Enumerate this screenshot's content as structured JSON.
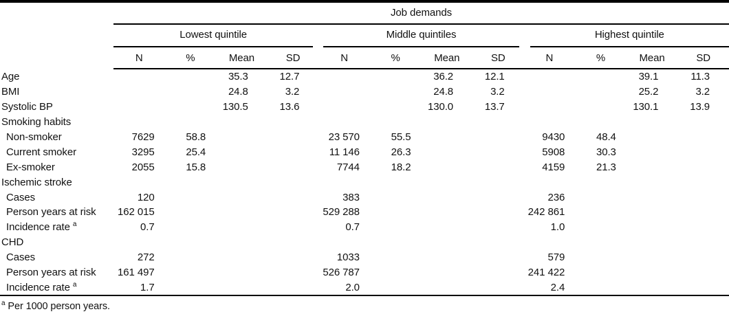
{
  "table": {
    "title": "Job demands",
    "groups": [
      {
        "label": "Lowest quintile"
      },
      {
        "label": "Middle quintiles"
      },
      {
        "label": "Highest quintile"
      }
    ],
    "subheaders": [
      "N",
      "%",
      "Mean",
      "SD"
    ],
    "rows": [
      {
        "label": "Age",
        "indent": false,
        "sup": "",
        "cells": [
          "",
          "",
          "35.3",
          "12.7",
          "",
          "",
          "36.2",
          "12.1",
          "",
          "",
          "39.1",
          "11.3"
        ]
      },
      {
        "label": "BMI",
        "indent": false,
        "sup": "",
        "cells": [
          "",
          "",
          "24.8",
          "3.2",
          "",
          "",
          "24.8",
          "3.2",
          "",
          "",
          "25.2",
          "3.2"
        ]
      },
      {
        "label": "Systolic BP",
        "indent": false,
        "sup": "",
        "cells": [
          "",
          "",
          "130.5",
          "13.6",
          "",
          "",
          "130.0",
          "13.7",
          "",
          "",
          "130.1",
          "13.9"
        ]
      },
      {
        "label": "Smoking habits",
        "indent": false,
        "sup": "",
        "cells": [
          "",
          "",
          "",
          "",
          "",
          "",
          "",
          "",
          "",
          "",
          "",
          ""
        ]
      },
      {
        "label": "Non-smoker",
        "indent": true,
        "sup": "",
        "cells": [
          "7629",
          "58.8",
          "",
          "",
          "23 570",
          "55.5",
          "",
          "",
          "9430",
          "48.4",
          "",
          ""
        ]
      },
      {
        "label": "Current smoker",
        "indent": true,
        "sup": "",
        "cells": [
          "3295",
          "25.4",
          "",
          "",
          "11 146",
          "26.3",
          "",
          "",
          "5908",
          "30.3",
          "",
          ""
        ]
      },
      {
        "label": "Ex-smoker",
        "indent": true,
        "sup": "",
        "cells": [
          "2055",
          "15.8",
          "",
          "",
          "7744",
          "18.2",
          "",
          "",
          "4159",
          "21.3",
          "",
          ""
        ]
      },
      {
        "label": "Ischemic stroke",
        "indent": false,
        "sup": "",
        "cells": [
          "",
          "",
          "",
          "",
          "",
          "",
          "",
          "",
          "",
          "",
          "",
          ""
        ]
      },
      {
        "label": "Cases",
        "indent": true,
        "sup": "",
        "cells": [
          "120",
          "",
          "",
          "",
          "383",
          "",
          "",
          "",
          "236",
          "",
          "",
          ""
        ]
      },
      {
        "label": "Person years at risk",
        "indent": true,
        "sup": "",
        "cells": [
          "162 015",
          "",
          "",
          "",
          "529 288",
          "",
          "",
          "",
          "242 861",
          "",
          "",
          ""
        ]
      },
      {
        "label": "Incidence rate",
        "indent": true,
        "sup": "a",
        "cells": [
          "0.7",
          "",
          "",
          "",
          "0.7",
          "",
          "",
          "",
          "1.0",
          "",
          "",
          ""
        ]
      },
      {
        "label": "CHD",
        "indent": false,
        "sup": "",
        "cells": [
          "",
          "",
          "",
          "",
          "",
          "",
          "",
          "",
          "",
          "",
          "",
          ""
        ]
      },
      {
        "label": "Cases",
        "indent": true,
        "sup": "",
        "cells": [
          "272",
          "",
          "",
          "",
          "1033",
          "",
          "",
          "",
          "579",
          "",
          "",
          ""
        ]
      },
      {
        "label": "Person years at risk",
        "indent": true,
        "sup": "",
        "cells": [
          "161 497",
          "",
          "",
          "",
          "526 787",
          "",
          "",
          "",
          "241 422",
          "",
          "",
          ""
        ]
      },
      {
        "label": "Incidence rate",
        "indent": true,
        "sup": "a",
        "cells": [
          "1.7",
          "",
          "",
          "",
          "2.0",
          "",
          "",
          "",
          "2.4",
          "",
          "",
          ""
        ]
      }
    ],
    "footnote": {
      "sup": "a",
      "text": "Per 1000 person years."
    }
  }
}
